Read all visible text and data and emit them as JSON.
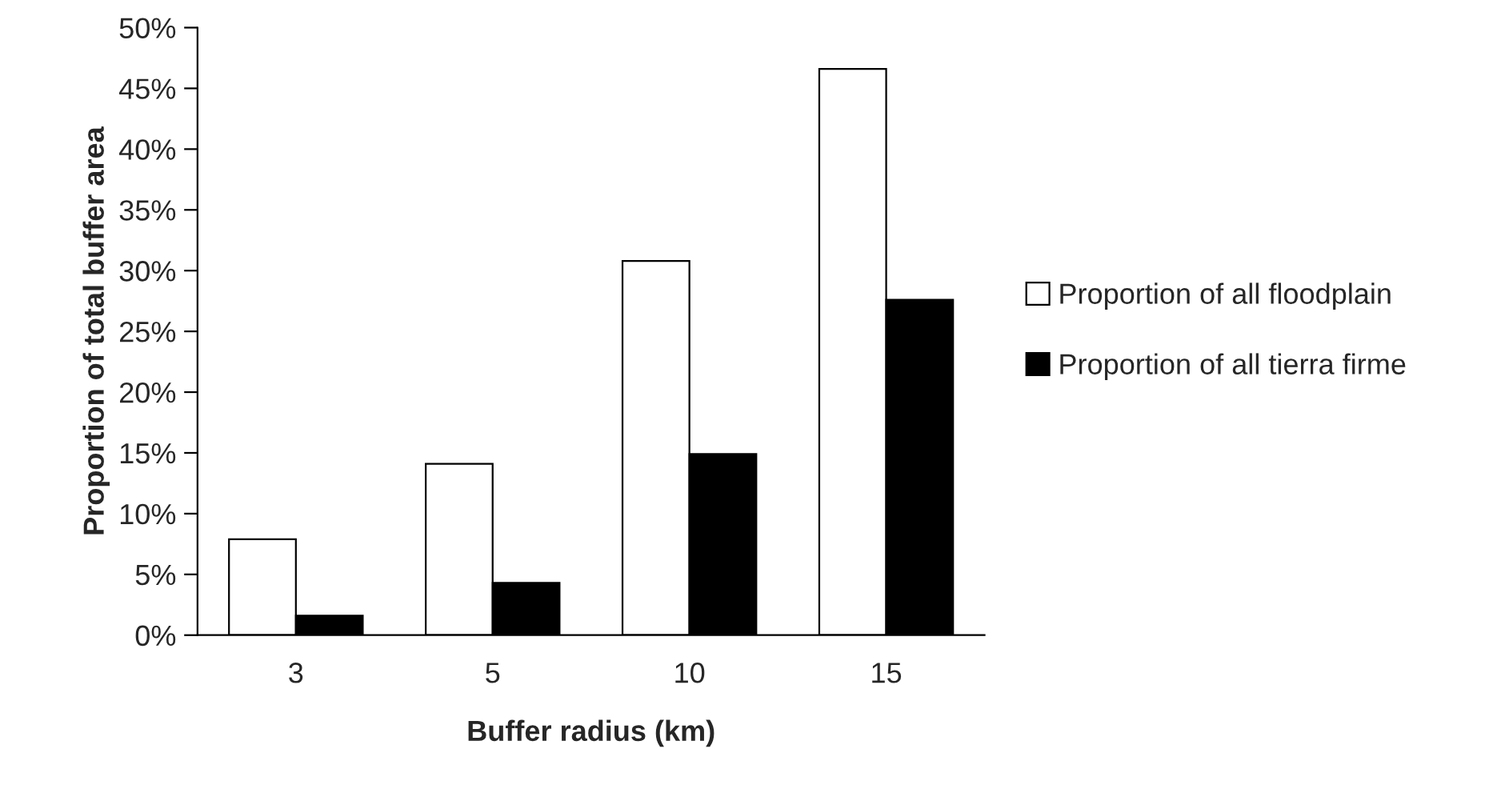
{
  "chart_data": {
    "type": "bar",
    "xlabel": "Buffer radius (km)",
    "ylabel": "Proportion of total buffer area",
    "categories": [
      "3",
      "5",
      "10",
      "15"
    ],
    "series": [
      {
        "name": "Proportion of all floodplain",
        "color": "#ffffff",
        "values": [
          7.9,
          14.1,
          30.8,
          46.6
        ]
      },
      {
        "name": "Proportion of all tierra firme",
        "color": "#000000",
        "values": [
          1.6,
          4.3,
          14.9,
          27.6
        ]
      }
    ],
    "ylim": [
      0,
      50
    ],
    "yticks": [
      {
        "value": 0,
        "label": "0%"
      },
      {
        "value": 5,
        "label": "5%"
      },
      {
        "value": 10,
        "label": "10%"
      },
      {
        "value": 15,
        "label": "15%"
      },
      {
        "value": 20,
        "label": "20%"
      },
      {
        "value": 25,
        "label": "25%"
      },
      {
        "value": 30,
        "label": "30%"
      },
      {
        "value": 35,
        "label": "35%"
      },
      {
        "value": 40,
        "label": "40%"
      },
      {
        "value": 45,
        "label": "45%"
      },
      {
        "value": 50,
        "label": "50%"
      }
    ],
    "grid": false,
    "legend": "right"
  }
}
